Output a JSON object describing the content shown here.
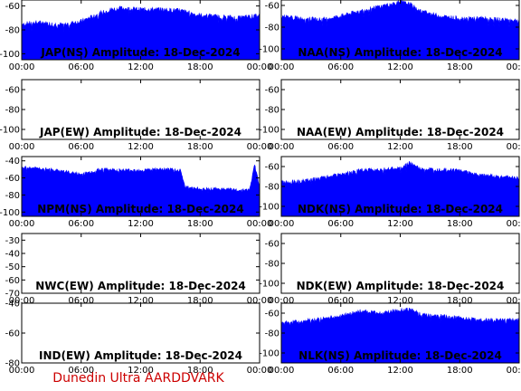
{
  "footer": "Dunedin Ultra AARDDVARK",
  "colors": {
    "fill": "#0000ff",
    "axis": "#000000",
    "footer": "#cc0000"
  },
  "chart_data": [
    {
      "type": "area",
      "title": "JAP(NS) Amplitude: 18-Dec-2024",
      "ylim": [
        -105,
        -55
      ],
      "yticks": [
        -60,
        -80,
        -100
      ],
      "x": [
        "00:00",
        "02:00",
        "04:00",
        "06:00",
        "08:00",
        "09:00",
        "10:00",
        "12:00",
        "14:00",
        "16:00",
        "18:00",
        "20:00",
        "22:00",
        "24:00"
      ],
      "values": [
        -75,
        -74,
        -76,
        -73,
        -66,
        -63,
        -62,
        -63,
        -63,
        -64,
        -68,
        -69,
        -70,
        -68
      ]
    },
    {
      "type": "area",
      "title": "NAA(NS) Amplitude: 18-Dec-2024",
      "ylim": [
        -110,
        -55
      ],
      "yticks": [
        -60,
        -80,
        -100
      ],
      "x": [
        "00:00",
        "02:00",
        "04:00",
        "06:00",
        "08:00",
        "10:00",
        "12:00",
        "13:00",
        "14:00",
        "16:00",
        "18:00",
        "20:00",
        "22:00",
        "24:00"
      ],
      "values": [
        -70,
        -72,
        -73,
        -70,
        -65,
        -61,
        -57,
        -59,
        -65,
        -70,
        -72,
        -72,
        -73,
        -74
      ]
    },
    {
      "type": "area",
      "title": "JAP(EW) Amplitude: 18-Dec-2024",
      "ylim": [
        -110,
        -50
      ],
      "yticks": [
        -60,
        -80,
        -100
      ],
      "x": [],
      "values": []
    },
    {
      "type": "area",
      "title": "NAA(EW) Amplitude: 18-Dec-2024",
      "ylim": [
        -110,
        -50
      ],
      "yticks": [
        -60,
        -80,
        -100
      ],
      "x": [],
      "values": []
    },
    {
      "type": "area",
      "title": "NPM(NS) Amplitude: 18-Dec-2024",
      "ylim": [
        -105,
        -35
      ],
      "yticks": [
        -40,
        -60,
        -80,
        -100
      ],
      "x": [
        "00:00",
        "02:00",
        "04:00",
        "06:00",
        "08:00",
        "10:00",
        "12:00",
        "14:00",
        "16:00",
        "16:30",
        "18:00",
        "20:00",
        "22:00",
        "23:00",
        "23:30",
        "24:00"
      ],
      "values": [
        -48,
        -49,
        -52,
        -56,
        -50,
        -51,
        -51,
        -50,
        -51,
        -71,
        -73,
        -73,
        -74,
        -74,
        -45,
        -70
      ]
    },
    {
      "type": "area",
      "title": "NDK(NS) Amplitude: 18-Dec-2024",
      "ylim": [
        -110,
        -50
      ],
      "yticks": [
        -60,
        -80,
        -100
      ],
      "x": [
        "00:00",
        "02:00",
        "04:00",
        "06:00",
        "08:00",
        "10:00",
        "12:00",
        "13:00",
        "14:00",
        "16:00",
        "18:00",
        "20:00",
        "22:00",
        "24:00"
      ],
      "values": [
        -76,
        -75,
        -72,
        -68,
        -64,
        -63,
        -62,
        -56,
        -63,
        -63,
        -64,
        -69,
        -70,
        -72
      ]
    },
    {
      "type": "area",
      "title": "NWC(EW) Amplitude: 18-Dec-2024",
      "ylim": [
        -70,
        -25
      ],
      "yticks": [
        -30,
        -40,
        -50,
        -60,
        -70
      ],
      "x": [],
      "values": []
    },
    {
      "type": "area",
      "title": "NDK(EW) Amplitude: 18-Dec-2024",
      "ylim": [
        -110,
        -50
      ],
      "yticks": [
        -60,
        -80,
        -100
      ],
      "x": [],
      "values": []
    },
    {
      "type": "area",
      "title": "IND(EW) Amplitude: 18-Dec-2024",
      "ylim": [
        -80,
        -40
      ],
      "yticks": [
        -40,
        -60,
        -80
      ],
      "x": [],
      "values": []
    },
    {
      "type": "area",
      "title": "NLK(NS) Amplitude: 18-Dec-2024",
      "ylim": [
        -110,
        -50
      ],
      "yticks": [
        -60,
        -80,
        -100
      ],
      "x": [
        "00:00",
        "02:00",
        "04:00",
        "06:00",
        "08:00",
        "10:00",
        "12:00",
        "13:00",
        "14:00",
        "16:00",
        "18:00",
        "20:00",
        "22:00",
        "24:00"
      ],
      "values": [
        -70,
        -68,
        -66,
        -63,
        -58,
        -60,
        -57,
        -56,
        -61,
        -63,
        -65,
        -67,
        -67,
        -67
      ]
    }
  ],
  "xticks": [
    "00:00",
    "06:00",
    "12:00",
    "18:00",
    "00:00"
  ]
}
